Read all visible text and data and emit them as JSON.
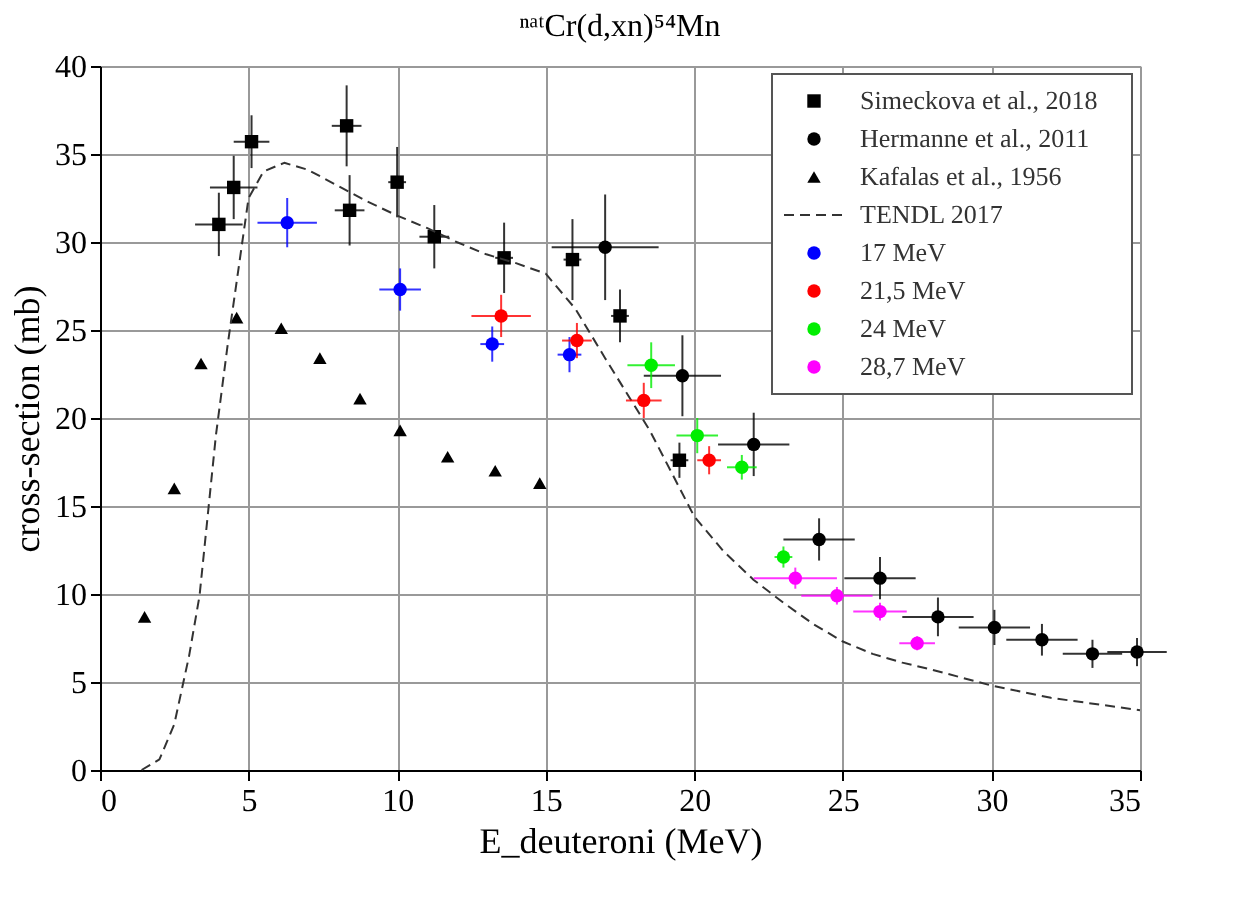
{
  "chart_data": {
    "type": "scatter",
    "title": "ⁿᵃᵗCr(d,xn)⁵⁴Mn",
    "xlabel": "E_deuteroni (MeV)",
    "ylabel": "cross-section (mb)",
    "xlim": [
      0,
      35
    ],
    "ylim": [
      0,
      40
    ],
    "xticks": [
      0,
      5,
      10,
      15,
      20,
      25,
      30,
      35
    ],
    "yticks": [
      0,
      5,
      10,
      15,
      20,
      25,
      30,
      35,
      40
    ],
    "grid": true,
    "legend": "top right",
    "series": [
      {
        "name": "Simeckova et al., 2018",
        "marker": "square",
        "color": "#000000",
        "x": [
          4.0,
          4.5,
          5.1,
          8.3,
          8.4,
          10.0,
          11.25,
          13.6,
          15.9,
          17.5,
          19.5
        ],
        "values": [
          31.0,
          33.1,
          35.7,
          36.6,
          31.8,
          33.4,
          30.3,
          29.1,
          29.0,
          25.8,
          17.6
        ],
        "errors": [
          1.8,
          1.8,
          1.5,
          2.3,
          2.0,
          2.0,
          1.8,
          2.0,
          2.3,
          1.5,
          1.0
        ],
        "xerrors": [
          0.8,
          0.8,
          0.6,
          0.5,
          0.5,
          0.3,
          0.5,
          0.3,
          0.3,
          0.3,
          0.3
        ]
      },
      {
        "name": "Hermanne et al., 2011",
        "marker": "circle",
        "color": "#000000",
        "x": [
          17.0,
          19.6,
          22.0,
          24.2,
          26.25,
          28.2,
          30.1,
          31.7,
          33.4,
          34.9
        ],
        "values": [
          29.7,
          22.4,
          18.5,
          13.1,
          10.9,
          8.7,
          8.1,
          7.4,
          6.6,
          6.7
        ],
        "errors": [
          3.0,
          2.3,
          1.8,
          1.2,
          1.2,
          1.1,
          1.0,
          0.9,
          0.8,
          0.8
        ],
        "xerrors": [
          1.8,
          1.3,
          1.2,
          1.2,
          1.2,
          1.2,
          1.2,
          1.2,
          1.0,
          1.0
        ]
      },
      {
        "name": "Kafalas et al., 1956",
        "marker": "triangle",
        "color": "#000000",
        "x": [
          1.5,
          2.5,
          3.4,
          4.6,
          6.1,
          7.4,
          8.75,
          10.1,
          11.7,
          13.3,
          14.8
        ],
        "values": [
          8.7,
          16.0,
          23.1,
          25.7,
          25.1,
          23.4,
          21.1,
          19.3,
          17.8,
          17.0,
          16.3
        ]
      },
      {
        "name": "TENDL 2017",
        "type": "line",
        "line_style": "dashed",
        "color": "#333333",
        "x": [
          1.4,
          2.0,
          2.5,
          3.0,
          3.35,
          3.9,
          4.3,
          5.0,
          5.5,
          6.2,
          7,
          8,
          9,
          10,
          11,
          12,
          13,
          14,
          15,
          15.7,
          16,
          17,
          18.5,
          20,
          21,
          22,
          23,
          24,
          25,
          26,
          27,
          28,
          30,
          32,
          35
        ],
        "values": [
          0,
          0.6,
          2.6,
          6.5,
          9.9,
          19,
          24.2,
          32.5,
          34,
          34.5,
          34.1,
          33.2,
          32.3,
          31.5,
          30.8,
          30,
          29.3,
          28.8,
          28.2,
          26.8,
          26.2,
          23.4,
          19.3,
          14.4,
          12.4,
          10.8,
          9.5,
          8.3,
          7.3,
          6.6,
          6.1,
          5.7,
          4.8,
          4.1,
          3.4
        ]
      },
      {
        "name": "17 MeV",
        "marker": "circle",
        "color": "#0000ff",
        "x": [
          6.3,
          10.1,
          13.2,
          15.8
        ],
        "values": [
          31.1,
          27.3,
          24.2,
          23.6
        ],
        "errors": [
          1.4,
          1.2,
          1.0,
          1.0
        ],
        "xerrors": [
          1.0,
          0.7,
          0.4,
          0.4
        ]
      },
      {
        "name": "21,5 MeV",
        "marker": "circle",
        "color": "#ff0000",
        "x": [
          13.5,
          16.05,
          18.3,
          20.5
        ],
        "values": [
          25.8,
          24.4,
          21.0,
          17.6
        ],
        "errors": [
          1.2,
          1.0,
          1.0,
          0.8
        ],
        "xerrors": [
          1.0,
          0.5,
          0.6,
          0.4
        ]
      },
      {
        "name": "24 MeV",
        "marker": "circle",
        "color": "#00ee00",
        "x": [
          18.55,
          20.1,
          21.6,
          23.0
        ],
        "values": [
          23.0,
          19.0,
          17.2,
          12.1
        ],
        "errors": [
          1.3,
          1.0,
          0.7,
          0.6
        ],
        "xerrors": [
          0.8,
          0.7,
          0.5,
          0.3
        ]
      },
      {
        "name": "28,7 MeV",
        "marker": "circle",
        "color": "#ff00ff",
        "x": [
          23.4,
          24.8,
          26.25,
          27.5
        ],
        "values": [
          10.9,
          9.9,
          9.0,
          7.2
        ],
        "errors": [
          0.6,
          0.5,
          0.5,
          0.4
        ],
        "xerrors": [
          1.4,
          1.2,
          0.9,
          0.6
        ]
      }
    ]
  }
}
